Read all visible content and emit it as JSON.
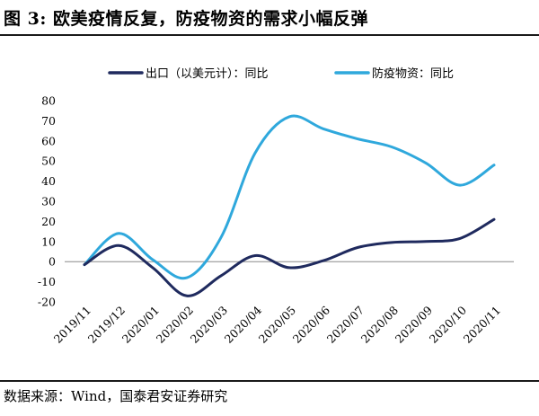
{
  "figure": {
    "title": "图 3:  欧美疫情反复，防疫物资的需求小幅反弹",
    "source": "数据来源：Wind，国泰君安证券研究"
  },
  "chart_data": {
    "type": "line",
    "categories": [
      "2019/11",
      "2019/12",
      "2020/01",
      "2020/02",
      "2020/03",
      "2020/04",
      "2020/05",
      "2020/06",
      "2020/07",
      "2020/08",
      "2020/09",
      "2020/10",
      "2020/11"
    ],
    "ylim": [
      -20,
      80
    ],
    "yticks": [
      80,
      70,
      60,
      50,
      40,
      30,
      20,
      10,
      0,
      -10,
      -20
    ],
    "legend_position": "top",
    "grid": false,
    "series": [
      {
        "name": "出口（以美元计）：同比",
        "color": "#1f2a5e",
        "values": [
          -1.5,
          8,
          -3,
          -17,
          -7,
          3,
          -3,
          0.5,
          7,
          9.5,
          10,
          11.5,
          21
        ]
      },
      {
        "name": "防疫物资：同比",
        "color": "#2fa8dc",
        "values": [
          -1.5,
          14,
          1,
          -8,
          12,
          54,
          72,
          66,
          61,
          57,
          49,
          38,
          48
        ]
      }
    ]
  }
}
